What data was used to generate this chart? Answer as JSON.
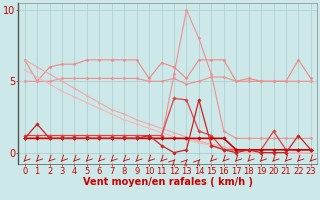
{
  "bg_color": "#cce8e8",
  "grid_color": "#aacccc",
  "xlim": [
    -0.5,
    23.5
  ],
  "ylim": [
    -0.8,
    10.5
  ],
  "yticks": [
    0,
    5,
    10
  ],
  "xticks": [
    0,
    1,
    2,
    3,
    4,
    5,
    6,
    7,
    8,
    9,
    10,
    11,
    12,
    13,
    14,
    15,
    16,
    17,
    18,
    19,
    20,
    21,
    22,
    23
  ],
  "xlabel": "Vent moyen/en rafales ( km/h )",
  "xlabel_color": "#cc0000",
  "xlabel_fontsize": 7,
  "tick_color": "#cc0000",
  "tick_fontsize": 6,
  "series": [
    {
      "name": "peak_line_light",
      "x": [
        0,
        1,
        2,
        3,
        4,
        5,
        6,
        7,
        8,
        9,
        10,
        11,
        12,
        13,
        14,
        15,
        16,
        17,
        18,
        19,
        20,
        21,
        22,
        23
      ],
      "y": [
        1.0,
        1.0,
        1.0,
        1.0,
        1.0,
        1.0,
        1.0,
        1.0,
        1.0,
        1.0,
        1.0,
        1.0,
        5.5,
        10.0,
        8.0,
        5.5,
        1.5,
        1.0,
        1.0,
        1.0,
        1.0,
        1.0,
        1.0,
        1.0
      ],
      "color": "#f09090",
      "lw": 0.8,
      "marker": "D",
      "ms": 1.5
    },
    {
      "name": "upper_wavy_line",
      "x": [
        0,
        1,
        2,
        3,
        4,
        5,
        6,
        7,
        8,
        9,
        10,
        11,
        12,
        13,
        14,
        15,
        16,
        17,
        18,
        19,
        20,
        21,
        22,
        23
      ],
      "y": [
        6.5,
        5.0,
        6.0,
        6.2,
        6.2,
        6.5,
        6.5,
        6.5,
        6.5,
        6.5,
        5.2,
        6.3,
        6.0,
        5.2,
        6.5,
        6.5,
        6.5,
        5.0,
        5.2,
        5.0,
        5.0,
        5.0,
        6.5,
        5.2
      ],
      "color": "#f08888",
      "lw": 0.8,
      "marker": "D",
      "ms": 1.5
    },
    {
      "name": "flat_line_5",
      "x": [
        0,
        1,
        2,
        3,
        4,
        5,
        6,
        7,
        8,
        9,
        10,
        11,
        12,
        13,
        14,
        15,
        16,
        17,
        18,
        19,
        20,
        21,
        22,
        23
      ],
      "y": [
        5.0,
        5.0,
        5.0,
        5.2,
        5.2,
        5.2,
        5.2,
        5.2,
        5.2,
        5.2,
        5.0,
        5.0,
        5.2,
        4.8,
        5.0,
        5.3,
        5.3,
        5.0,
        5.0,
        5.0,
        5.0,
        5.0,
        5.0,
        5.0
      ],
      "color": "#f09090",
      "lw": 0.8,
      "marker": "D",
      "ms": 1.5
    },
    {
      "name": "diagonal_line1",
      "x": [
        0,
        1,
        2,
        3,
        4,
        5,
        6,
        7,
        8,
        9,
        10,
        11,
        12,
        13,
        14,
        15,
        16,
        17,
        18,
        19,
        20,
        21,
        22,
        23
      ],
      "y": [
        6.5,
        6.0,
        5.5,
        5.0,
        4.5,
        4.0,
        3.5,
        3.0,
        2.7,
        2.3,
        2.0,
        1.7,
        1.4,
        1.1,
        0.8,
        0.6,
        0.4,
        0.2,
        0.1,
        0.0,
        0.0,
        0.0,
        0.0,
        0.0
      ],
      "color": "#f0a8a8",
      "lw": 0.8,
      "marker": "D",
      "ms": 1.2
    },
    {
      "name": "diagonal_line2",
      "x": [
        0,
        1,
        2,
        3,
        4,
        5,
        6,
        7,
        8,
        9,
        10,
        11,
        12,
        13,
        14,
        15,
        16,
        17,
        18,
        19,
        20,
        21,
        22,
        23
      ],
      "y": [
        5.8,
        5.3,
        4.8,
        4.3,
        3.9,
        3.5,
        3.1,
        2.7,
        2.3,
        2.0,
        1.7,
        1.4,
        1.1,
        0.9,
        0.7,
        0.5,
        0.3,
        0.1,
        0.0,
        0.0,
        0.0,
        0.0,
        0.0,
        0.0
      ],
      "color": "#f0b8b8",
      "lw": 0.8,
      "marker": "D",
      "ms": 1.2
    },
    {
      "name": "medium_peak_line",
      "x": [
        0,
        1,
        2,
        3,
        4,
        5,
        6,
        7,
        8,
        9,
        10,
        11,
        12,
        13,
        14,
        15,
        16,
        17,
        18,
        19,
        20,
        21,
        22,
        23
      ],
      "y": [
        1.2,
        1.2,
        1.2,
        1.2,
        1.2,
        1.2,
        1.2,
        1.2,
        1.2,
        1.2,
        1.2,
        1.2,
        3.8,
        3.7,
        1.5,
        1.2,
        0.2,
        0.2,
        0.2,
        0.2,
        1.5,
        0.2,
        0.2,
        0.2
      ],
      "color": "#dd4444",
      "lw": 0.9,
      "marker": "D",
      "ms": 1.8
    },
    {
      "name": "base_line_1",
      "x": [
        0,
        1,
        2,
        3,
        4,
        5,
        6,
        7,
        8,
        9,
        10,
        11,
        12,
        13,
        14,
        15,
        16,
        17,
        18,
        19,
        20,
        21,
        22,
        23
      ],
      "y": [
        1.0,
        1.0,
        1.0,
        1.0,
        1.0,
        1.0,
        1.0,
        1.0,
        1.0,
        1.0,
        1.0,
        1.0,
        1.0,
        1.0,
        1.0,
        1.0,
        1.0,
        0.2,
        0.2,
        0.2,
        0.2,
        0.2,
        0.2,
        0.2
      ],
      "color": "#cc0000",
      "lw": 1.2,
      "marker": "D",
      "ms": 1.8
    },
    {
      "name": "spike_line",
      "x": [
        0,
        1,
        2,
        3,
        4,
        5,
        6,
        7,
        8,
        9,
        10,
        11,
        12,
        13,
        14,
        15,
        16,
        17,
        18,
        19,
        20,
        21,
        22,
        23
      ],
      "y": [
        1.0,
        2.0,
        1.0,
        1.0,
        1.0,
        1.0,
        1.0,
        1.0,
        1.0,
        1.0,
        1.2,
        0.5,
        0.0,
        0.2,
        3.7,
        0.5,
        0.2,
        0.0,
        0.2,
        0.0,
        0.0,
        0.0,
        1.2,
        0.2
      ],
      "color": "#cc2222",
      "lw": 0.9,
      "marker": "D",
      "ms": 1.8
    }
  ],
  "wind_arrows": {
    "angles_deg": [
      225,
      225,
      225,
      225,
      225,
      225,
      225,
      225,
      225,
      225,
      225,
      225,
      45,
      45,
      45,
      225,
      225,
      225,
      225,
      225,
      225,
      225,
      225,
      225
    ]
  }
}
